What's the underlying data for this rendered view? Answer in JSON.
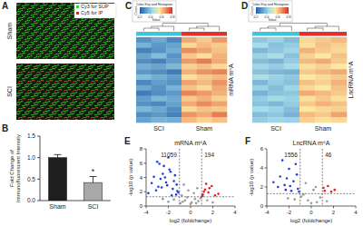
{
  "chart_data": [
    {
      "type": "image",
      "panel": "A",
      "categories": [
        "Sham",
        "SCI"
      ],
      "series": [
        {
          "name": "Cy3 for SUP",
          "color": "#36d03a"
        },
        {
          "name": "Cy5 for IP",
          "color": "#e3261f"
        }
      ]
    },
    {
      "type": "bar",
      "panel": "B",
      "categories": [
        "Sham",
        "SCI"
      ],
      "values": [
        1.0,
        0.42
      ],
      "errors": [
        0.07,
        0.14
      ],
      "colors": [
        "#1e1e1e",
        "#a8a8a8"
      ],
      "ylim": [
        0,
        1.5
      ],
      "yticks": [
        {
          "value": 0,
          "label": "0.0"
        },
        0.5,
        {
          "value": 1,
          "label": "1.0"
        },
        1.5
      ],
      "y_label": [
        "Fold Change of",
        "Immunofluorescent Intensity"
      ],
      "annotations": [
        {
          "text": "*",
          "category": 1
        }
      ]
    },
    {
      "type": "heatmap",
      "panel": "C",
      "key_title": "Color Key and Histogram",
      "x_label": "Value",
      "y_label": "Count",
      "row_label": "mRNA m⁶A",
      "groups": [
        {
          "name": "SCI",
          "color": "#3cc6da",
          "size": 3
        },
        {
          "name": "Sham",
          "color": "#e5302a",
          "size": 3
        }
      ],
      "colorbar_range": [
        0.2,
        0.8
      ],
      "colorbar_ticks": [
        0.2,
        0.4,
        0.6,
        0.8
      ],
      "cells": [
        [
          0.3,
          0.34,
          0.28,
          0.64,
          0.6,
          0.66
        ],
        [
          0.36,
          0.31,
          0.33,
          0.58,
          0.62,
          0.6
        ],
        [
          0.27,
          0.3,
          0.35,
          0.68,
          0.65,
          0.61
        ],
        [
          0.33,
          0.38,
          0.3,
          0.6,
          0.57,
          0.63
        ],
        [
          0.29,
          0.27,
          0.32,
          0.66,
          0.7,
          0.64
        ],
        [
          0.35,
          0.33,
          0.37,
          0.59,
          0.61,
          0.58
        ],
        [
          0.31,
          0.29,
          0.26,
          0.63,
          0.67,
          0.69
        ],
        [
          0.38,
          0.35,
          0.32,
          0.57,
          0.6,
          0.62
        ],
        [
          0.28,
          0.32,
          0.3,
          0.65,
          0.62,
          0.67
        ],
        [
          0.34,
          0.3,
          0.36,
          0.61,
          0.58,
          0.64
        ],
        [
          0.26,
          0.29,
          0.31,
          0.69,
          0.66,
          0.63
        ],
        [
          0.32,
          0.37,
          0.34,
          0.6,
          0.63,
          0.59
        ],
        [
          0.3,
          0.28,
          0.33,
          0.64,
          0.68,
          0.65
        ],
        [
          0.37,
          0.34,
          0.29,
          0.58,
          0.61,
          0.6
        ],
        [
          0.29,
          0.31,
          0.27,
          0.67,
          0.64,
          0.7
        ],
        [
          0.33,
          0.36,
          0.35,
          0.62,
          0.59,
          0.61
        ]
      ]
    },
    {
      "type": "heatmap",
      "panel": "D",
      "key_title": "Color Key and Histogram",
      "x_label": "Value",
      "y_label": "Count",
      "row_label": "LncRNA m⁶A",
      "groups": [
        {
          "name": "SCI",
          "color": "#3cc6da",
          "size": 3
        },
        {
          "name": "Sham",
          "color": "#e5302a",
          "size": 3
        }
      ],
      "colorbar_range": [
        0.2,
        0.8
      ],
      "colorbar_ticks": [
        0.2,
        0.4,
        0.6,
        0.8
      ],
      "cells": [
        [
          0.4,
          0.42,
          0.38,
          0.58,
          0.6,
          0.62
        ],
        [
          0.44,
          0.39,
          0.41,
          0.57,
          0.61,
          0.59
        ],
        [
          0.37,
          0.4,
          0.43,
          0.63,
          0.6,
          0.58
        ],
        [
          0.42,
          0.45,
          0.39,
          0.59,
          0.56,
          0.61
        ],
        [
          0.38,
          0.36,
          0.41,
          0.62,
          0.64,
          0.6
        ],
        [
          0.43,
          0.41,
          0.44,
          0.57,
          0.59,
          0.56
        ],
        [
          0.39,
          0.37,
          0.36,
          0.6,
          0.62,
          0.64
        ],
        [
          0.45,
          0.42,
          0.4,
          0.56,
          0.58,
          0.6
        ],
        [
          0.37,
          0.41,
          0.39,
          0.61,
          0.59,
          0.63
        ],
        [
          0.42,
          0.38,
          0.43,
          0.58,
          0.56,
          0.61
        ],
        [
          0.36,
          0.39,
          0.4,
          0.64,
          0.62,
          0.6
        ],
        [
          0.41,
          0.44,
          0.42,
          0.57,
          0.6,
          0.57
        ],
        [
          0.39,
          0.37,
          0.41,
          0.6,
          0.63,
          0.61
        ],
        [
          0.44,
          0.42,
          0.38,
          0.56,
          0.58,
          0.59
        ],
        [
          0.38,
          0.4,
          0.36,
          0.62,
          0.6,
          0.65
        ],
        [
          0.41,
          0.43,
          0.42,
          0.59,
          0.57,
          0.58
        ]
      ]
    },
    {
      "type": "scatter",
      "panel": "E",
      "title": "mRNA m⁶A",
      "x_label": "log2 (foldchange)",
      "y_label": "-log10 (p value)",
      "xlim": [
        -4,
        4
      ],
      "xticks": [
        -4,
        -2,
        0,
        2,
        4
      ],
      "ylim": [
        0,
        8
      ],
      "yticks": [
        0,
        2,
        4,
        6,
        8
      ],
      "vlines": [
        -1,
        1
      ],
      "hline": 1.3,
      "annotations": [
        {
          "text": "11059",
          "side": "left"
        },
        {
          "text": "194",
          "side": "right"
        }
      ],
      "series": [
        {
          "color": "#1f3fd8",
          "x": [
            -1.2,
            -1.5,
            -1.8,
            -2.1,
            -2.4,
            -2.7,
            -3.0,
            -3.3,
            -1.3,
            -1.6,
            -2.0,
            -2.5,
            -2.9,
            -3.5,
            -1.1,
            -1.9,
            -2.2,
            -2.8,
            -1.4,
            -3.1,
            -1.7,
            -2.3,
            -2.6,
            -1.25,
            -3.8
          ],
          "values": [
            2.1,
            3.5,
            4.8,
            2.9,
            5.6,
            3.8,
            6.2,
            4.1,
            1.6,
            2.4,
            6.8,
            4.5,
            2.7,
            3.2,
            1.9,
            5.1,
            3.3,
            5.9,
            4.3,
            2.2,
            1.5,
            4.0,
            2.6,
            3.0,
            1.8
          ]
        },
        {
          "color": "#e01f1f",
          "x": [
            1.1,
            1.3,
            1.6,
            1.9,
            2.2,
            1.4,
            1.2,
            2.5,
            1.7,
            1.05
          ],
          "values": [
            1.6,
            2.3,
            1.9,
            2.8,
            1.5,
            3.1,
            2.0,
            1.7,
            2.5,
            1.4
          ]
        },
        {
          "color": "#9a9a9a",
          "x": [
            -0.8,
            -0.5,
            -0.2,
            0.1,
            0.4,
            0.7,
            -0.6,
            0.3,
            -0.9,
            0.6,
            -1.5,
            -2.0,
            1.5,
            -0.3,
            0.0,
            0.5,
            -0.7,
            0.9,
            -2.5,
            2.0
          ],
          "values": [
            1.5,
            0.8,
            2.2,
            0.5,
            1.0,
            0.7,
            3.0,
            1.8,
            0.4,
            2.5,
            0.9,
            0.6,
            0.8,
            1.2,
            0.3,
            0.4,
            0.6,
            1.1,
            1.0,
            0.5
          ]
        }
      ]
    },
    {
      "type": "scatter",
      "panel": "F",
      "title": "LncRNA m⁶A",
      "x_label": "log2 (foldchange)",
      "y_label": "-log10 (p value)",
      "xlim": [
        -4,
        4
      ],
      "xticks": [
        -4,
        -2,
        0,
        2,
        4
      ],
      "ylim": [
        0,
        6
      ],
      "yticks": [
        0,
        2,
        4,
        6
      ],
      "vlines": [
        -1,
        1
      ],
      "hline": 1.3,
      "annotations": [
        {
          "text": "1556",
          "side": "left"
        },
        {
          "text": "46",
          "side": "right"
        }
      ],
      "series": [
        {
          "color": "#1f3fd8",
          "x": [
            -1.2,
            -1.6,
            -2.0,
            -2.4,
            -2.8,
            -1.4,
            -1.8,
            -2.2,
            -3.0,
            -1.1,
            -2.6,
            -3.4,
            -1.3,
            -1.9,
            -2.3
          ],
          "values": [
            1.8,
            2.6,
            3.9,
            2.2,
            3.1,
            4.4,
            1.6,
            2.9,
            2.0,
            1.5,
            4.8,
            2.5,
            3.3,
            2.1,
            1.7
          ]
        },
        {
          "color": "#e01f1f",
          "x": [
            1.2,
            1.5,
            1.8,
            1.1,
            2.1
          ],
          "values": [
            1.6,
            2.1,
            1.5,
            1.9,
            1.7
          ]
        },
        {
          "color": "#9a9a9a",
          "x": [
            -0.7,
            -0.3,
            0.2,
            0.5,
            -0.5,
            0.8,
            -1.5,
            1.4,
            0.0,
            -0.9,
            -2.1,
            0.4
          ],
          "values": [
            1.2,
            0.6,
            1.7,
            0.4,
            2.4,
            0.9,
            0.7,
            0.5,
            0.3,
            1.0,
            0.8,
            2.0
          ]
        }
      ]
    }
  ]
}
